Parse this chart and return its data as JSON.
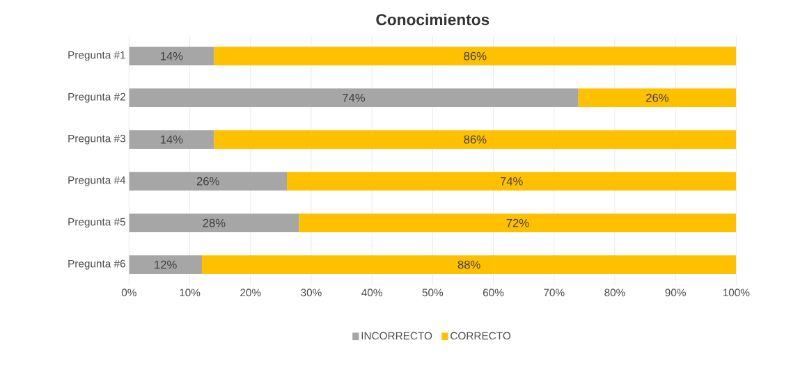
{
  "chart_data": {
    "type": "bar",
    "title": "Conocimientos",
    "orientation": "horizontal",
    "stacked": true,
    "categories": [
      "Pregunta #1",
      "Pregunta #2",
      "Pregunta #3",
      "Pregunta #4",
      "Pregunta #5",
      "Pregunta #6"
    ],
    "series": [
      {
        "name": "INCORRECTO",
        "color": "#a6a6a6",
        "values": [
          14,
          74,
          14,
          26,
          28,
          12
        ],
        "value_labels": [
          "14%",
          "74%",
          "14%",
          "26%",
          "28%",
          "12%"
        ]
      },
      {
        "name": "CORRECTO",
        "color": "#ffc000",
        "values": [
          86,
          26,
          86,
          74,
          72,
          88
        ],
        "value_labels": [
          "86%",
          "26%",
          "86%",
          "74%",
          "72%",
          "88%"
        ]
      }
    ],
    "xlim": [
      0,
      100
    ],
    "xticks": [
      {
        "value": 0,
        "label": "0%"
      },
      {
        "value": 10,
        "label": "10%"
      },
      {
        "value": 20,
        "label": "20%"
      },
      {
        "value": 30,
        "label": "30%"
      },
      {
        "value": 40,
        "label": "40%"
      },
      {
        "value": 50,
        "label": "50%"
      },
      {
        "value": 60,
        "label": "60%"
      },
      {
        "value": 70,
        "label": "70%"
      },
      {
        "value": 80,
        "label": "80%"
      },
      {
        "value": 90,
        "label": "90%"
      },
      {
        "value": 100,
        "label": "100%"
      }
    ],
    "grid": "x",
    "legend": "bottom"
  }
}
